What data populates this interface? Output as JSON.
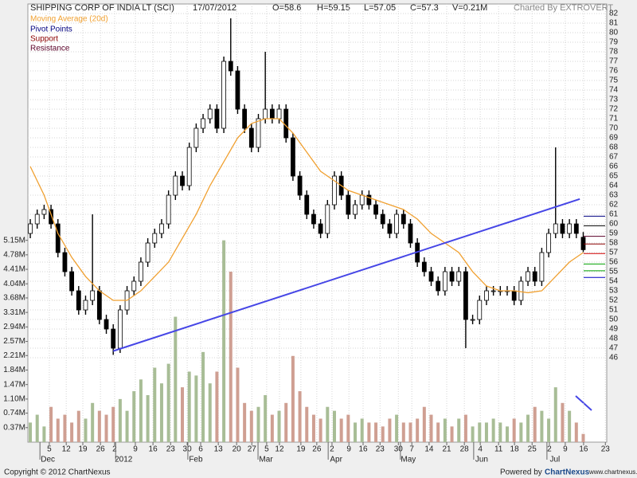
{
  "header": {
    "title": "SHIPPING CORP OF INDIA LT (SCI)",
    "date": "17/07/2012",
    "open": "O=58.6",
    "high": "H=59.15",
    "low": "L=57.05",
    "close": "C=57.3",
    "volume": "V=0.21M",
    "credit": "Charted By EXTROVERT"
  },
  "footer": {
    "copyright": "Copyright © 2012 ChartNexus",
    "powered": "Powered by",
    "brand": "ChartNexus",
    "url": "www.chartnexus.com"
  },
  "chart_data": {
    "type": "candlestick",
    "up_color": "#ffffff",
    "down_color": "#000000",
    "volume_up_color": "#a8bd96",
    "volume_down_color": "#cf9f92",
    "grid": true,
    "xlim": [
      -0.7,
      166.8
    ],
    "ylim": [
      37.17,
      83
    ],
    "y2lim": [
      0,
      11.18
    ],
    "yticks": [
      46,
      47,
      48,
      49,
      50,
      51,
      52,
      53,
      54,
      55,
      56,
      57,
      58,
      59,
      60,
      61,
      62,
      63,
      64,
      65,
      66,
      67,
      68,
      69,
      70,
      71,
      72,
      73,
      74,
      75,
      76,
      77,
      78,
      79,
      80,
      81,
      82
    ],
    "y2ticks": [
      {
        "value": 0.37,
        "label": "0.37M"
      },
      {
        "value": 0.74,
        "label": "0.74M"
      },
      {
        "value": 1.1,
        "label": "1.10M"
      },
      {
        "value": 1.47,
        "label": "1.47M"
      },
      {
        "value": 1.84,
        "label": "1.84M"
      },
      {
        "value": 2.21,
        "label": "2.21M"
      },
      {
        "value": 2.57,
        "label": "2.57M"
      },
      {
        "value": 2.94,
        "label": "2.94M"
      },
      {
        "value": 3.31,
        "label": "3.31M"
      },
      {
        "value": 3.68,
        "label": "3.68M"
      },
      {
        "value": 4.04,
        "label": "4.04M"
      },
      {
        "value": 4.41,
        "label": "4.41M"
      },
      {
        "value": 4.78,
        "label": "4.78M"
      },
      {
        "value": 5.15,
        "label": "5.15M"
      }
    ],
    "xticks": [
      {
        "value": 5.5,
        "label": "5"
      },
      {
        "value": 10.4,
        "label": "12"
      },
      {
        "value": 15.2,
        "label": "19"
      },
      {
        "value": 20.3,
        "label": "26"
      },
      {
        "value": 24.4,
        "label": "2"
      },
      {
        "value": 30.4,
        "label": "9"
      },
      {
        "value": 35.5,
        "label": "16"
      },
      {
        "value": 40.6,
        "label": "23"
      },
      {
        "value": 45.4,
        "label": "30"
      },
      {
        "value": 49.3,
        "label": "6"
      },
      {
        "value": 54.4,
        "label": "13"
      },
      {
        "value": 59.7,
        "label": "20"
      },
      {
        "value": 64.1,
        "label": "27"
      },
      {
        "value": 68.4,
        "label": "5"
      },
      {
        "value": 72.1,
        "label": "12"
      },
      {
        "value": 78.3,
        "label": "19"
      },
      {
        "value": 82.9,
        "label": "26"
      },
      {
        "value": 87.3,
        "label": "2"
      },
      {
        "value": 92.2,
        "label": "9"
      },
      {
        "value": 96.3,
        "label": "16"
      },
      {
        "value": 101.2,
        "label": "23"
      },
      {
        "value": 106.5,
        "label": "30"
      },
      {
        "value": 110.4,
        "label": "7"
      },
      {
        "value": 115.4,
        "label": "14"
      },
      {
        "value": 120.5,
        "label": "21"
      },
      {
        "value": 125.6,
        "label": "28"
      },
      {
        "value": 130.2,
        "label": "4"
      },
      {
        "value": 135.5,
        "label": "11"
      },
      {
        "value": 140.1,
        "label": "18"
      },
      {
        "value": 145.2,
        "label": "25"
      },
      {
        "value": 150.2,
        "label": "2"
      },
      {
        "value": 154.8,
        "label": "9"
      },
      {
        "value": 160.1,
        "label": "16"
      },
      {
        "value": 166.4,
        "label": "23"
      }
    ],
    "months": [
      {
        "value": 5.1,
        "label": "Dec"
      },
      {
        "value": 27,
        "label": "2012"
      },
      {
        "value": 47.9,
        "label": "Feb"
      },
      {
        "value": 68.2,
        "label": "Mar"
      },
      {
        "value": 88.5,
        "label": "Apr"
      },
      {
        "value": 109.4,
        "label": "May"
      },
      {
        "value": 130.6,
        "label": "Jun"
      },
      {
        "value": 151.8,
        "label": "Jul"
      }
    ],
    "x": [
      0,
      2,
      4,
      6,
      8,
      10,
      12,
      14,
      16,
      18,
      20,
      22,
      24,
      26,
      28,
      30,
      32,
      34,
      36,
      38,
      40,
      42,
      44,
      46,
      48,
      50,
      52,
      54,
      56,
      58,
      60,
      62,
      64,
      66,
      68,
      70,
      72,
      74,
      76,
      78,
      80,
      82,
      84,
      86,
      88,
      90,
      92,
      94,
      96,
      98,
      100,
      102,
      104,
      106,
      108,
      110,
      112,
      114,
      116,
      118,
      120,
      122,
      124,
      126,
      128,
      130,
      132,
      134,
      136,
      138,
      140,
      142,
      144,
      146,
      148,
      150,
      152,
      154,
      156,
      158,
      160
    ],
    "open": [
      59,
      60,
      61,
      61.5,
      60,
      57,
      55,
      53,
      51,
      52,
      53,
      50,
      49,
      47,
      51,
      53,
      54,
      56,
      58,
      59,
      60,
      63,
      65,
      64,
      68,
      70,
      71,
      72,
      70,
      77,
      76,
      72,
      70,
      68,
      71,
      72,
      71,
      72,
      69,
      65,
      63,
      61,
      60,
      59,
      62,
      65,
      63,
      61,
      62,
      63,
      62,
      61,
      60,
      59,
      61,
      60,
      58,
      56,
      55,
      54,
      53,
      55,
      54,
      55,
      50,
      50,
      52,
      53,
      53,
      53,
      53,
      52,
      54,
      55,
      54,
      57,
      59,
      60,
      59,
      60,
      58.6
    ],
    "high": [
      60.5,
      61.5,
      62,
      62,
      60.5,
      57.5,
      55.5,
      53.5,
      52.5,
      61,
      53.5,
      50.5,
      49.5,
      51.5,
      53.5,
      54.5,
      56.5,
      58.5,
      59.5,
      60.5,
      63.5,
      65.5,
      65.5,
      68.5,
      70.5,
      71.5,
      72.5,
      72.5,
      77.5,
      81.5,
      76.5,
      72.5,
      70.5,
      71.5,
      78,
      72.5,
      72.5,
      72.5,
      69.5,
      65.5,
      63.5,
      61.5,
      60.5,
      62.5,
      65.5,
      65.5,
      63.5,
      62.5,
      63.5,
      63.5,
      62.5,
      61.5,
      60.5,
      61.5,
      61.5,
      60.5,
      58.5,
      56.5,
      55.5,
      54.5,
      55.5,
      55.5,
      55.5,
      55.5,
      50.5,
      52.5,
      53.5,
      53.5,
      53.5,
      53.5,
      53.5,
      54.5,
      55.5,
      55.5,
      57.5,
      59.5,
      68,
      60.5,
      60.5,
      60.5,
      59.15
    ],
    "low": [
      58.5,
      59.5,
      60.5,
      59.5,
      56.5,
      54.5,
      52.5,
      50.5,
      50.5,
      51.5,
      49.5,
      48.5,
      46.3,
      46.5,
      50.5,
      52.5,
      53.5,
      55.5,
      57.5,
      58.5,
      59.5,
      62.5,
      63.5,
      63.5,
      67.5,
      69.5,
      70.5,
      69.5,
      69.5,
      75.5,
      71.5,
      69.5,
      67.5,
      67.5,
      70.5,
      70.5,
      70.5,
      68.5,
      64.5,
      62.5,
      60.5,
      59.5,
      58.5,
      58.5,
      61.5,
      62.5,
      60.5,
      60.5,
      61.5,
      61.5,
      60.5,
      59.5,
      58.5,
      58.5,
      59.5,
      57.5,
      55.5,
      54.5,
      53.5,
      52.5,
      52.5,
      53.5,
      53.5,
      47,
      49.5,
      49.5,
      51.5,
      52.5,
      52.5,
      52.5,
      51.5,
      51.5,
      53.5,
      53.5,
      53.5,
      56.5,
      58.5,
      58.5,
      58.5,
      58.5,
      57.05
    ],
    "close": [
      60,
      61,
      61.5,
      60,
      57,
      55,
      53,
      51,
      52,
      53,
      50,
      49,
      47,
      51,
      53,
      54,
      56,
      58,
      59,
      60,
      63,
      65,
      64,
      68,
      70,
      71,
      72,
      70,
      77,
      76,
      72,
      70,
      68,
      71,
      72,
      71,
      72,
      69,
      65,
      63,
      61,
      60,
      59,
      62,
      65,
      63,
      61,
      62,
      63,
      62,
      61,
      60,
      59,
      61,
      60,
      58,
      56,
      55,
      54,
      53,
      55,
      54,
      55,
      50,
      50,
      52,
      53,
      53,
      53,
      53,
      52,
      54,
      55,
      54,
      57,
      59,
      60,
      59,
      60,
      59,
      57.3
    ],
    "volume": [
      0.5,
      0.7,
      0.4,
      0.9,
      0.6,
      0.7,
      0.5,
      0.8,
      0.6,
      1.0,
      0.8,
      0.7,
      0.9,
      1.1,
      0.8,
      1.3,
      1.6,
      1.2,
      1.9,
      1.5,
      2.0,
      3.2,
      1.4,
      1.8,
      1.7,
      2.3,
      1.5,
      1.8,
      5.15,
      4.35,
      1.9,
      1.0,
      0.8,
      0.9,
      1.2,
      0.7,
      0.8,
      1.0,
      2.2,
      1.3,
      0.9,
      0.7,
      0.6,
      0.9,
      0.8,
      0.6,
      0.7,
      0.5,
      0.6,
      0.5,
      0.5,
      0.4,
      0.6,
      0.7,
      0.5,
      0.5,
      0.6,
      0.9,
      0.7,
      0.5,
      0.6,
      0.4,
      0.6,
      0.7,
      0.4,
      0.5,
      0.5,
      0.6,
      0.5,
      0.4,
      0.6,
      0.5,
      0.7,
      0.9,
      0.8,
      0.6,
      1.4,
      1.0,
      0.8,
      0.5,
      0.21
    ],
    "moving_average": {
      "name": "Moving Average (20d)",
      "color": "#f0a030",
      "x": [
        0,
        4,
        8,
        12,
        16,
        20,
        24,
        28,
        32,
        36,
        40,
        44,
        48,
        52,
        56,
        60,
        64,
        68,
        72,
        76,
        80,
        84,
        88,
        92,
        96,
        100,
        104,
        108,
        112,
        116,
        120,
        124,
        128,
        132,
        136,
        140,
        144,
        148,
        152,
        156,
        160
      ],
      "values": [
        66,
        63,
        59,
        56.5,
        54.5,
        53,
        52,
        52,
        53,
        54.5,
        56,
        58.5,
        61,
        64,
        66.5,
        69,
        70.5,
        71,
        71,
        69.5,
        67.5,
        65.5,
        64.5,
        63.5,
        63,
        62.5,
        62,
        61.5,
        60.5,
        59,
        58,
        57,
        55,
        53.5,
        53,
        53,
        52.8,
        53,
        54.5,
        56,
        57
      ]
    },
    "trendline": {
      "color": "#4646e6",
      "x": [
        24,
        159
      ],
      "values": [
        46.7,
        62.6
      ]
    },
    "legend": [
      {
        "name": "Pivot Points",
        "color": "#000080"
      },
      {
        "name": "Support",
        "color": "#8b0000"
      },
      {
        "name": "Resistance",
        "color": "#5a0028"
      }
    ],
    "levels": [
      {
        "value": 60.8,
        "color": "#000080"
      },
      {
        "value": 59.8,
        "color": "#000000"
      },
      {
        "value": 58.7,
        "color": "#5a0028"
      },
      {
        "value": 57.9,
        "color": "#8b0000"
      },
      {
        "value": 56.9,
        "color": "#d00000"
      },
      {
        "value": 55.8,
        "color": "#00a000"
      },
      {
        "value": 55.1,
        "color": "#00a000"
      },
      {
        "value": 54.4,
        "color": "#0000c0"
      }
    ]
  }
}
